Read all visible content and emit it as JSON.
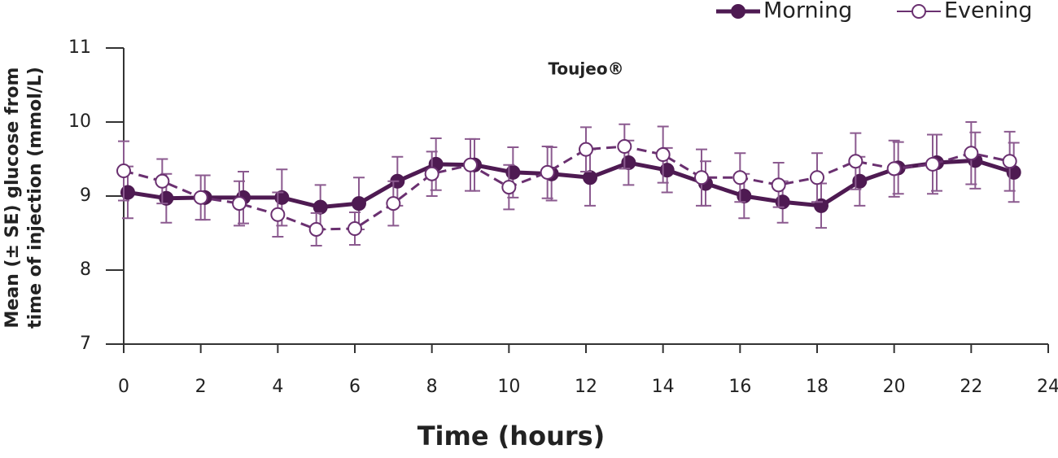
{
  "chart_data": {
    "type": "line",
    "title": "Toujeo®",
    "x_label": "Time (hours)",
    "y_label": [
      "Mean (± SE) glucose from",
      "time of injection (mmol/L)"
    ],
    "x": [
      0,
      1,
      2,
      3,
      4,
      5,
      6,
      7,
      8,
      9,
      10,
      11,
      12,
      13,
      14,
      15,
      16,
      17,
      18,
      19,
      20,
      21,
      22,
      23
    ],
    "series": [
      {
        "name": "Morning",
        "color": "#4e1a52",
        "marker": "filled",
        "dash": false,
        "values": [
          9.05,
          8.97,
          8.98,
          8.98,
          8.98,
          8.85,
          8.9,
          9.2,
          9.43,
          9.42,
          9.32,
          9.3,
          9.25,
          9.45,
          9.35,
          9.17,
          9.0,
          8.92,
          8.87,
          9.2,
          9.38,
          9.45,
          9.48,
          9.32
        ],
        "errors": [
          0.35,
          0.33,
          0.3,
          0.35,
          0.38,
          0.3,
          0.35,
          0.33,
          0.35,
          0.35,
          0.34,
          0.36,
          0.38,
          0.3,
          0.3,
          0.3,
          0.3,
          0.28,
          0.3,
          0.33,
          0.35,
          0.38,
          0.38,
          0.4
        ]
      },
      {
        "name": "Evening",
        "color": "#6a3070",
        "marker": "open",
        "dash": true,
        "values": [
          9.34,
          9.2,
          8.98,
          8.9,
          8.75,
          8.55,
          8.56,
          8.9,
          9.3,
          9.42,
          9.12,
          9.32,
          9.63,
          9.67,
          9.56,
          9.25,
          9.25,
          9.15,
          9.25,
          9.47,
          9.37,
          9.43,
          9.58,
          9.47
        ],
        "errors": [
          0.4,
          0.3,
          0.3,
          0.3,
          0.3,
          0.22,
          0.22,
          0.3,
          0.3,
          0.35,
          0.3,
          0.35,
          0.3,
          0.3,
          0.38,
          0.38,
          0.33,
          0.3,
          0.33,
          0.38,
          0.38,
          0.4,
          0.42,
          0.4
        ]
      }
    ],
    "xlim": [
      0,
      24
    ],
    "xticks": [
      0,
      2,
      4,
      6,
      8,
      10,
      12,
      14,
      16,
      18,
      20,
      22,
      24
    ],
    "ylim": [
      7,
      11
    ],
    "yticks": [
      7,
      8,
      9,
      10,
      11
    ],
    "legend": "top-right"
  }
}
